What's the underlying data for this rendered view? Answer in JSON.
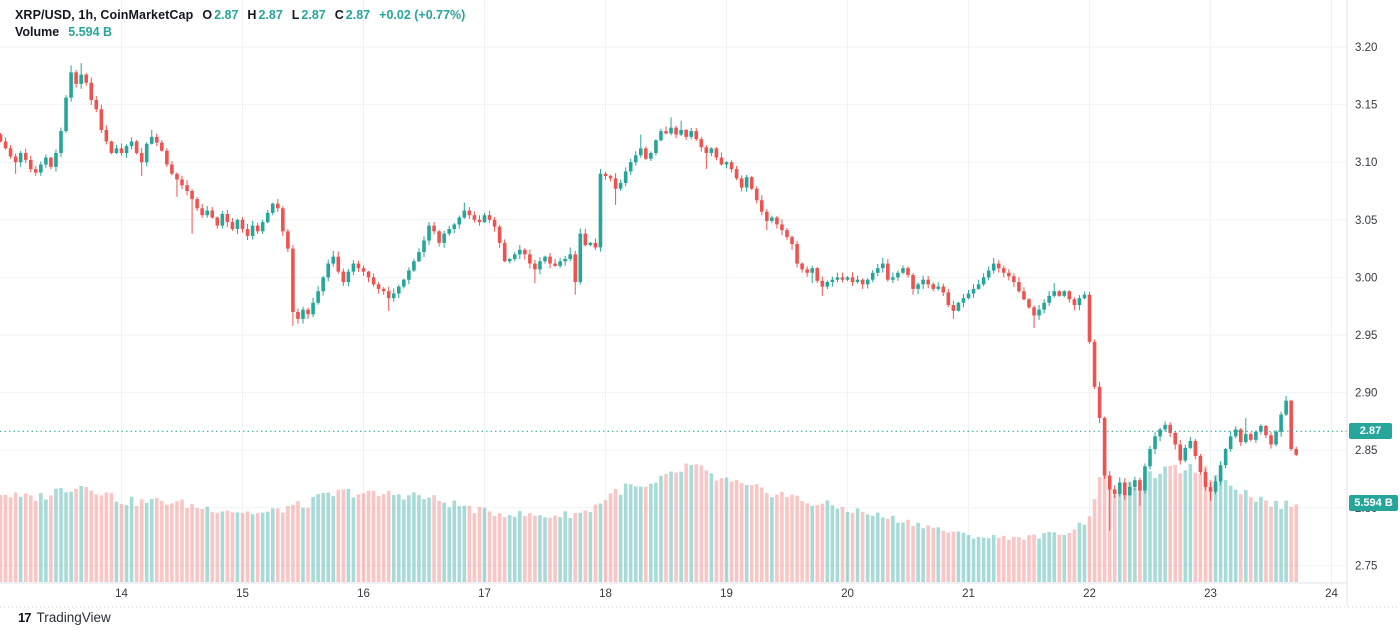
{
  "legend": {
    "symbol_line": "XRP/USD, 1h, CoinMarketCap",
    "ohlc": [
      {
        "label": "O",
        "value": "2.87"
      },
      {
        "label": "H",
        "value": "2.87"
      },
      {
        "label": "L",
        "value": "2.87"
      },
      {
        "label": "C",
        "value": "2.87"
      }
    ],
    "change": "+0.02 (+0.77%)",
    "volume_label": "Volume",
    "volume_value": "5.594 B"
  },
  "logo": {
    "mark": "17",
    "text": "TradingView"
  },
  "price_axis": {
    "labels": [
      {
        "text": "3.20",
        "value": 3.2
      },
      {
        "text": "3.15",
        "value": 3.15
      },
      {
        "text": "3.10",
        "value": 3.1
      },
      {
        "text": "3.05",
        "value": 3.05
      },
      {
        "text": "3.00",
        "value": 3.0
      },
      {
        "text": "2.95",
        "value": 2.95
      },
      {
        "text": "2.90",
        "value": 2.9
      },
      {
        "text": "2.85",
        "value": 2.85
      },
      {
        "text": "2.80",
        "value": 2.8
      },
      {
        "text": "2.75",
        "value": 2.75
      }
    ],
    "price_badge": {
      "text": "2.87",
      "value": 2.8665
    },
    "volume_badge": {
      "text": "5.594 B"
    }
  },
  "time_axis": {
    "labels": [
      {
        "text": "14"
      },
      {
        "text": "15"
      },
      {
        "text": "16"
      },
      {
        "text": "17"
      },
      {
        "text": "18"
      },
      {
        "text": "19"
      },
      {
        "text": "20"
      },
      {
        "text": "21"
      },
      {
        "text": "22"
      },
      {
        "text": "23"
      },
      {
        "text": "24"
      }
    ]
  },
  "colors": {
    "up": "#26a69a",
    "down": "#ef5350",
    "vol_up": "rgba(38,166,154,0.40)",
    "vol_down": "rgba(239,83,80,0.33)",
    "grid": "#f0f2f7",
    "border": "#e0e3eb",
    "axis_text": "#363a45",
    "price_line": "#26a69a",
    "badge_bg": "#26a69a",
    "legend_text": "#131722"
  },
  "chart_data": {
    "type": "candlestick+volume",
    "pair": "XRP/USD",
    "interval": "1h",
    "source": "CoinMarketCap",
    "title": "XRP/USD, 1h, CoinMarketCap",
    "first_candle_day_hour": "Aug 13 00:00",
    "price_axis_range": [
      2.72,
      3.24
    ],
    "grid_step": 0.05,
    "last_price": 2.8665,
    "last_volume_billions": 5.594,
    "closes": [
      3.118,
      3.112,
      3.105,
      3.1,
      3.108,
      3.102,
      3.094,
      3.091,
      3.098,
      3.104,
      3.096,
      3.108,
      3.127,
      3.156,
      3.178,
      3.168,
      3.176,
      3.169,
      3.154,
      3.146,
      3.128,
      3.118,
      3.108,
      3.112,
      3.108,
      3.114,
      3.118,
      3.108,
      3.1,
      3.116,
      3.122,
      3.117,
      3.11,
      3.098,
      3.09,
      3.085,
      3.08,
      3.075,
      3.068,
      3.06,
      3.054,
      3.058,
      3.052,
      3.045,
      3.055,
      3.048,
      3.042,
      3.05,
      3.042,
      3.036,
      3.045,
      3.04,
      3.048,
      3.056,
      3.064,
      3.06,
      3.04,
      3.025,
      2.97,
      2.964,
      2.972,
      2.968,
      2.978,
      2.988,
      3.0,
      3.012,
      3.018,
      3.005,
      2.996,
      3.005,
      3.012,
      3.008,
      3.005,
      3.0,
      2.994,
      2.99,
      2.988,
      2.982,
      2.986,
      2.992,
      2.998,
      3.006,
      3.014,
      3.022,
      3.032,
      3.045,
      3.04,
      3.03,
      3.038,
      3.042,
      3.046,
      3.052,
      3.058,
      3.054,
      3.05,
      3.048,
      3.054,
      3.05,
      3.044,
      3.03,
      3.014,
      3.016,
      3.02,
      3.024,
      3.02,
      3.012,
      3.007,
      3.014,
      3.018,
      3.012,
      3.01,
      3.014,
      3.016,
      3.02,
      2.996,
      3.038,
      3.028,
      3.03,
      3.026,
      3.09,
      3.088,
      3.086,
      3.077,
      3.082,
      3.092,
      3.1,
      3.106,
      3.112,
      3.103,
      3.108,
      3.119,
      3.127,
      3.125,
      3.13,
      3.124,
      3.128,
      3.122,
      3.127,
      3.12,
      3.113,
      3.108,
      3.112,
      3.104,
      3.098,
      3.1,
      3.094,
      3.086,
      3.078,
      3.087,
      3.077,
      3.067,
      3.057,
      3.049,
      3.052,
      3.046,
      3.041,
      3.035,
      3.029,
      3.012,
      3.007,
      3.004,
      3.008,
      2.997,
      2.992,
      2.996,
      2.998,
      3.0,
      2.998,
      3.0,
      2.996,
      2.998,
      2.994,
      2.998,
      3.004,
      3.008,
      3.012,
      2.998,
      3.0,
      3.004,
      3.008,
      3.002,
      2.99,
      2.994,
      2.998,
      2.994,
      2.99,
      2.992,
      2.987,
      2.976,
      2.971,
      2.978,
      2.982,
      2.986,
      2.99,
      2.994,
      3.0,
      3.006,
      3.012,
      3.008,
      3.004,
      3.001,
      2.996,
      2.988,
      2.981,
      2.974,
      2.967,
      2.972,
      2.978,
      2.984,
      2.988,
      2.984,
      2.988,
      2.981,
      2.976,
      2.982,
      2.985,
      2.944,
      2.905,
      2.878,
      2.828,
      2.816,
      2.812,
      2.822,
      2.811,
      2.818,
      2.824,
      2.815,
      2.836,
      2.851,
      2.862,
      2.868,
      2.872,
      2.865,
      2.855,
      2.841,
      2.852,
      2.858,
      2.845,
      2.831,
      2.818,
      2.814,
      2.823,
      2.837,
      2.851,
      2.862,
      2.868,
      2.857,
      2.864,
      2.859,
      2.866,
      2.871,
      2.863,
      2.855,
      2.866,
      2.881,
      2.893,
      2.851,
      2.846
    ],
    "wicks_high": {
      "14": 3.184,
      "16": 3.186,
      "30": 3.128,
      "66": 3.023,
      "92": 3.065,
      "113": 3.026,
      "127": 3.124,
      "133": 3.139,
      "135": 3.136,
      "175": 3.017,
      "197": 3.017,
      "209": 2.995,
      "247": 2.878,
      "255": 2.897
    },
    "wicks_low": {
      "3": 3.09,
      "28": 3.088,
      "35": 3.07,
      "38": 3.038,
      "58": 2.958,
      "77": 2.971,
      "106": 2.995,
      "114": 2.985,
      "122": 3.063,
      "140": 3.094,
      "152": 3.041,
      "157": 3.024,
      "161": 2.995,
      "163": 2.984,
      "181": 2.985,
      "189": 2.964,
      "205": 2.956,
      "220": 2.78,
      "226": 2.802,
      "240": 2.806
    },
    "volume_billions_anchors": [
      [
        0,
        6.4
      ],
      [
        4,
        6.0
      ],
      [
        8,
        6.1
      ],
      [
        12,
        6.6
      ],
      [
        15,
        6.9
      ],
      [
        18,
        6.8
      ],
      [
        21,
        6.3
      ],
      [
        24,
        5.8
      ],
      [
        28,
        5.7
      ],
      [
        32,
        5.8
      ],
      [
        36,
        5.6
      ],
      [
        40,
        5.3
      ],
      [
        44,
        5.2
      ],
      [
        48,
        5.0
      ],
      [
        52,
        4.9
      ],
      [
        56,
        5.2
      ],
      [
        58,
        5.5
      ],
      [
        60,
        5.4
      ],
      [
        62,
        5.8
      ],
      [
        64,
        6.1
      ],
      [
        68,
        6.4
      ],
      [
        71,
        6.4
      ],
      [
        74,
        6.2
      ],
      [
        78,
        6.3
      ],
      [
        82,
        6.2
      ],
      [
        86,
        5.9
      ],
      [
        88,
        5.7
      ],
      [
        92,
        5.4
      ],
      [
        96,
        5.0
      ],
      [
        100,
        4.9
      ],
      [
        104,
        4.8
      ],
      [
        108,
        4.7
      ],
      [
        112,
        4.8
      ],
      [
        116,
        5.0
      ],
      [
        119,
        5.7
      ],
      [
        122,
        6.5
      ],
      [
        125,
        6.8
      ],
      [
        128,
        6.6
      ],
      [
        131,
        7.2
      ],
      [
        134,
        7.8
      ],
      [
        136,
        8.2
      ],
      [
        137,
        8.3
      ],
      [
        139,
        7.9
      ],
      [
        142,
        7.4
      ],
      [
        144,
        7.2
      ],
      [
        148,
        6.7
      ],
      [
        152,
        6.5
      ],
      [
        156,
        6.2
      ],
      [
        160,
        5.7
      ],
      [
        164,
        5.5
      ],
      [
        168,
        5.2
      ],
      [
        172,
        4.9
      ],
      [
        176,
        4.6
      ],
      [
        180,
        4.3
      ],
      [
        184,
        4.0
      ],
      [
        188,
        3.6
      ],
      [
        192,
        3.3
      ],
      [
        196,
        3.2
      ],
      [
        200,
        3.2
      ],
      [
        204,
        3.2
      ],
      [
        208,
        3.4
      ],
      [
        212,
        3.6
      ],
      [
        215,
        4.3
      ],
      [
        216,
        4.9
      ],
      [
        217,
        6.1
      ],
      [
        218,
        7.3
      ],
      [
        219,
        8.5
      ],
      [
        220,
        7.6
      ],
      [
        221,
        6.5
      ],
      [
        223,
        6.7
      ],
      [
        225,
        7.0
      ],
      [
        227,
        7.4
      ],
      [
        229,
        7.7
      ],
      [
        231,
        7.8
      ],
      [
        233,
        8.0
      ],
      [
        235,
        8.2
      ],
      [
        236,
        8.3
      ],
      [
        238,
        8.1
      ],
      [
        240,
        7.6
      ],
      [
        242,
        7.7
      ],
      [
        244,
        7.2
      ],
      [
        246,
        6.6
      ],
      [
        248,
        6.2
      ],
      [
        250,
        5.9
      ],
      [
        252,
        5.7
      ],
      [
        254,
        5.4
      ],
      [
        256,
        5.6
      ],
      [
        257,
        5.6
      ]
    ],
    "volume_axis_max_billions": 8.5
  }
}
